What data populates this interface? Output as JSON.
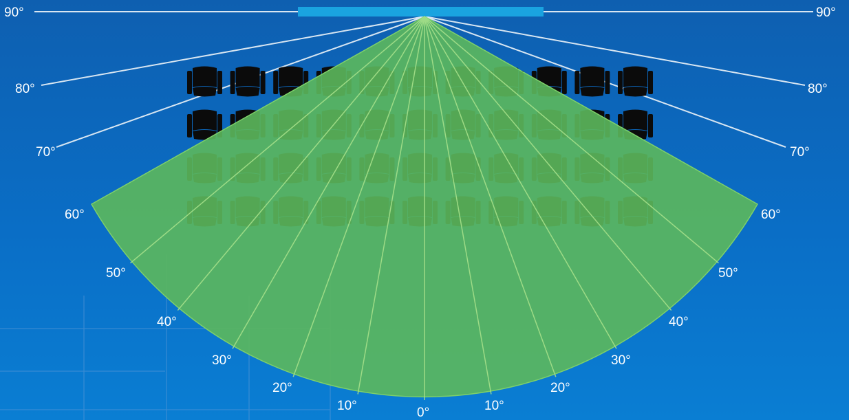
{
  "diagram": {
    "labels": {
      "top_left_90": "90°",
      "top_right_90": "90°",
      "left_80": "80°",
      "right_80": "80°",
      "left_70": "70°",
      "right_70": "70°",
      "left_60": "60°",
      "right_60": "60°",
      "left_50": "50°",
      "right_50": "50°",
      "left_40": "40°",
      "right_40": "40°",
      "left_30": "30°",
      "right_30": "30°",
      "left_20": "20°",
      "right_20": "20°",
      "left_10": "10°",
      "right_10": "10°",
      "center_0": "0°"
    },
    "seating": {
      "rows": 4,
      "seats_per_row": 11
    },
    "colors": {
      "background": "#0a6ec6",
      "screen_bar": "#1aa3e0",
      "coverage": "#5cb85c",
      "seat": "#0b0b0b",
      "reference_line": "#d8e6f2"
    }
  }
}
